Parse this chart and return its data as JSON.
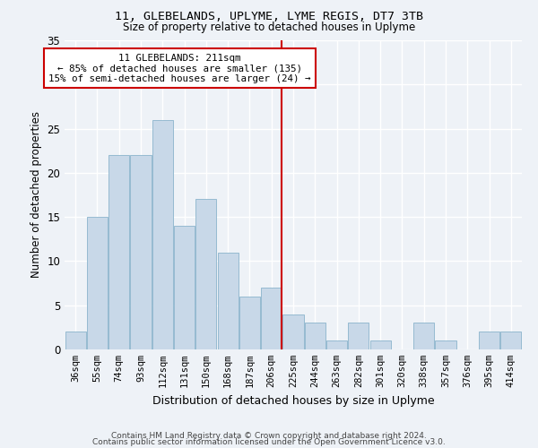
{
  "title_line1": "11, GLEBELANDS, UPLYME, LYME REGIS, DT7 3TB",
  "title_line2": "Size of property relative to detached houses in Uplyme",
  "xlabel": "Distribution of detached houses by size in Uplyme",
  "ylabel": "Number of detached properties",
  "bar_color": "#c8d8e8",
  "bar_edge_color": "#8ab4cc",
  "background_color": "#eef2f7",
  "grid_color": "#ffffff",
  "annotation_line_color": "#cc0000",
  "annotation_box_color": "#cc0000",
  "annotation_text": "11 GLEBELANDS: 211sqm\n← 85% of detached houses are smaller (135)\n15% of semi-detached houses are larger (24) →",
  "vline_x_index": 9.45,
  "categories": [
    "36sqm",
    "55sqm",
    "74sqm",
    "93sqm",
    "112sqm",
    "131sqm",
    "150sqm",
    "168sqm",
    "187sqm",
    "206sqm",
    "225sqm",
    "244sqm",
    "263sqm",
    "282sqm",
    "301sqm",
    "320sqm",
    "338sqm",
    "357sqm",
    "376sqm",
    "395sqm",
    "414sqm"
  ],
  "values": [
    2,
    15,
    22,
    22,
    26,
    14,
    17,
    11,
    6,
    7,
    4,
    3,
    1,
    3,
    1,
    0,
    3,
    1,
    0,
    2,
    2
  ],
  "ylim": [
    0,
    35
  ],
  "yticks": [
    0,
    5,
    10,
    15,
    20,
    25,
    30,
    35
  ],
  "footnote1": "Contains HM Land Registry data © Crown copyright and database right 2024.",
  "footnote2": "Contains public sector information licensed under the Open Government Licence v3.0."
}
